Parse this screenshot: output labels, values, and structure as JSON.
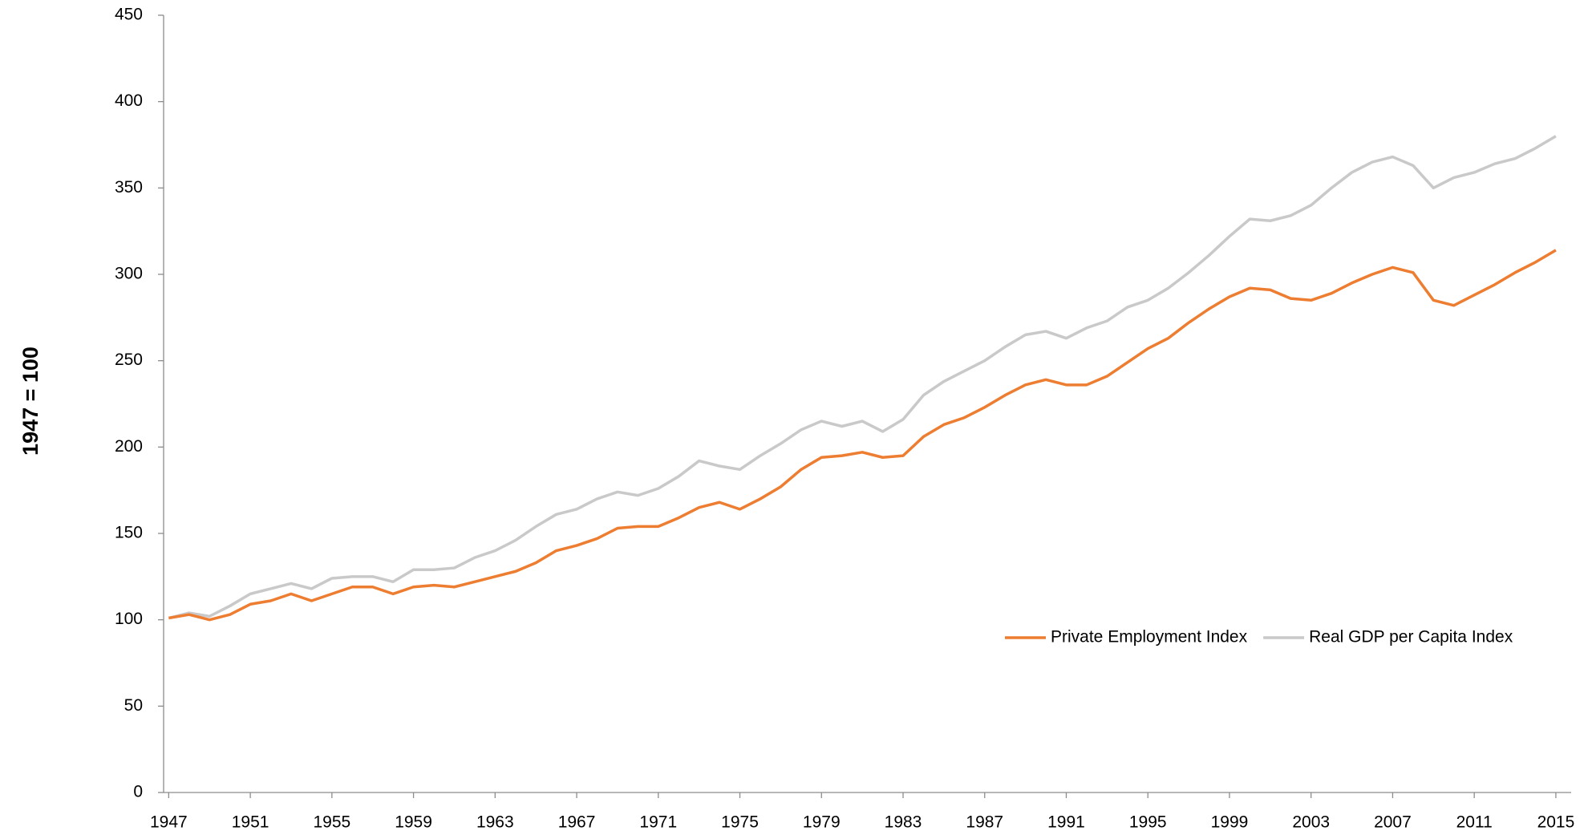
{
  "chart_data": {
    "type": "line",
    "ylabel": "1947 = 100",
    "x": [
      1947,
      1948,
      1949,
      1950,
      1951,
      1952,
      1953,
      1954,
      1955,
      1956,
      1957,
      1958,
      1959,
      1960,
      1961,
      1962,
      1963,
      1964,
      1965,
      1966,
      1967,
      1968,
      1969,
      1970,
      1971,
      1972,
      1973,
      1974,
      1975,
      1976,
      1977,
      1978,
      1979,
      1980,
      1981,
      1982,
      1983,
      1984,
      1985,
      1986,
      1987,
      1988,
      1989,
      1990,
      1991,
      1992,
      1993,
      1994,
      1995,
      1996,
      1997,
      1998,
      1999,
      2000,
      2001,
      2002,
      2003,
      2004,
      2005,
      2006,
      2007,
      2008,
      2009,
      2010,
      2011,
      2012,
      2013,
      2014,
      2015
    ],
    "series": [
      {
        "name": "Private Employment Index",
        "color": "#ed7d31",
        "values": [
          101,
          103,
          100,
          103,
          109,
          111,
          115,
          111,
          115,
          119,
          119,
          115,
          119,
          120,
          119,
          122,
          125,
          128,
          133,
          140,
          143,
          147,
          153,
          154,
          154,
          159,
          165,
          168,
          164,
          170,
          177,
          187,
          194,
          195,
          197,
          194,
          195,
          206,
          213,
          217,
          223,
          230,
          236,
          239,
          236,
          236,
          241,
          249,
          257,
          263,
          272,
          280,
          287,
          292,
          291,
          286,
          285,
          289,
          295,
          300,
          304,
          301,
          285,
          282,
          288,
          294,
          301,
          307,
          314
        ]
      },
      {
        "name": "Real GDP per Capita Index",
        "color": "#c9c9c9",
        "values": [
          101,
          104,
          102,
          108,
          115,
          118,
          121,
          118,
          124,
          125,
          125,
          122,
          129,
          129,
          130,
          136,
          140,
          146,
          154,
          161,
          164,
          170,
          174,
          172,
          176,
          183,
          192,
          189,
          187,
          195,
          202,
          210,
          215,
          212,
          215,
          209,
          216,
          230,
          238,
          244,
          250,
          258,
          265,
          267,
          263,
          269,
          273,
          281,
          285,
          292,
          301,
          311,
          322,
          332,
          331,
          334,
          340,
          350,
          359,
          365,
          368,
          363,
          350,
          356,
          359,
          364,
          367,
          373,
          380
        ]
      }
    ],
    "xlim": [
      1946.75,
      2015.75
    ],
    "xticks": [
      1947,
      1951,
      1955,
      1959,
      1963,
      1967,
      1971,
      1975,
      1979,
      1983,
      1987,
      1991,
      1995,
      1999,
      2003,
      2007,
      2011,
      2015
    ],
    "ylim": [
      0,
      450
    ],
    "yticks": [
      0,
      50,
      100,
      150,
      200,
      250,
      300,
      350,
      400,
      450
    ],
    "grid": false,
    "legend": "right"
  }
}
